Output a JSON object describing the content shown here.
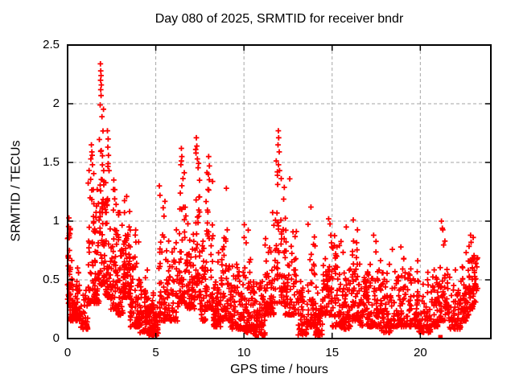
{
  "chart_data": {
    "type": "scatter",
    "title": "Day 080 of 2025, SRMTID for receiver bndr",
    "xlabel": "GPS time / hours",
    "ylabel": "SRMTID / TECUs",
    "xlim": [
      0,
      24
    ],
    "ylim": [
      0,
      2.5
    ],
    "xticks": [
      0,
      5,
      10,
      15,
      20
    ],
    "xtick_labels": [
      "0",
      "5",
      "10",
      "15",
      "20"
    ],
    "yticks": [
      0,
      0.5,
      1,
      1.5,
      2,
      2.5
    ],
    "ytick_labels": [
      "0",
      "0.5",
      "1",
      "1.5",
      "2",
      "2.5"
    ],
    "grid": true,
    "legend": "none",
    "marker": "plus",
    "marker_color": "#ff0000",
    "grid_color": "#a6a6a6",
    "axis_color": "#000000",
    "background_color": "#ffffff",
    "seed": 80,
    "density_bands_format": [
      "t_start_h",
      "t_end_h",
      "n_points",
      "y_min",
      "y_max",
      "low_bias_exponent"
    ],
    "density_bands": [
      [
        0.0,
        0.15,
        38,
        0.3,
        1.05,
        1.2
      ],
      [
        0.1,
        0.7,
        85,
        0.15,
        0.68,
        1.8
      ],
      [
        0.7,
        1.15,
        40,
        0.08,
        0.42,
        1.6
      ],
      [
        1.15,
        1.5,
        45,
        0.3,
        1.6,
        2.0
      ],
      [
        1.5,
        1.8,
        50,
        0.3,
        1.3,
        1.8
      ],
      [
        1.8,
        2.1,
        55,
        0.45,
        2.0,
        1.6
      ],
      [
        2.1,
        2.45,
        45,
        0.35,
        1.5,
        1.8
      ],
      [
        2.45,
        2.8,
        45,
        0.25,
        1.3,
        1.8
      ],
      [
        2.8,
        3.15,
        45,
        0.2,
        1.1,
        1.8
      ],
      [
        3.15,
        3.55,
        70,
        0.35,
        1.2,
        1.5
      ],
      [
        3.55,
        4.1,
        80,
        0.1,
        0.95,
        1.8
      ],
      [
        4.1,
        4.55,
        60,
        0.05,
        0.6,
        1.8
      ],
      [
        4.55,
        5.15,
        85,
        0.02,
        0.4,
        1.6
      ],
      [
        5.15,
        5.6,
        50,
        0.15,
        1.2,
        2.0
      ],
      [
        5.6,
        6.3,
        65,
        0.15,
        0.95,
        1.8
      ],
      [
        6.3,
        6.75,
        55,
        0.3,
        1.55,
        2.0
      ],
      [
        6.75,
        7.2,
        50,
        0.25,
        1.0,
        1.6
      ],
      [
        7.2,
        7.5,
        40,
        0.35,
        1.65,
        2.0
      ],
      [
        7.5,
        7.85,
        45,
        0.15,
        0.85,
        1.8
      ],
      [
        7.85,
        8.25,
        50,
        0.25,
        1.45,
        1.9
      ],
      [
        8.25,
        8.7,
        60,
        0.1,
        0.75,
        1.7
      ],
      [
        8.7,
        9.2,
        55,
        0.15,
        0.95,
        1.7
      ],
      [
        9.2,
        10.0,
        85,
        0.08,
        0.65,
        1.7
      ],
      [
        10.0,
        10.5,
        60,
        0.05,
        0.95,
        2.0
      ],
      [
        10.5,
        11.2,
        80,
        0.03,
        0.5,
        1.6
      ],
      [
        11.2,
        11.7,
        55,
        0.2,
        1.1,
        1.8
      ],
      [
        11.7,
        12.3,
        60,
        0.3,
        1.55,
        1.8
      ],
      [
        12.3,
        13.0,
        70,
        0.2,
        1.05,
        1.8
      ],
      [
        13.0,
        13.6,
        55,
        0.03,
        0.5,
        1.6
      ],
      [
        13.6,
        14.05,
        50,
        0.1,
        1.0,
        2.0
      ],
      [
        14.05,
        14.45,
        55,
        0.03,
        0.45,
        1.6
      ],
      [
        14.45,
        15.0,
        60,
        0.2,
        1.0,
        1.9
      ],
      [
        15.0,
        15.5,
        50,
        0.1,
        0.9,
        2.0
      ],
      [
        15.5,
        16.05,
        60,
        0.08,
        0.85,
        1.9
      ],
      [
        16.05,
        16.55,
        55,
        0.15,
        0.95,
        2.0
      ],
      [
        16.55,
        17.1,
        60,
        0.1,
        0.65,
        1.7
      ],
      [
        17.1,
        17.75,
        60,
        0.1,
        0.85,
        1.9
      ],
      [
        17.75,
        18.4,
        65,
        0.05,
        0.65,
        1.7
      ],
      [
        18.4,
        19.15,
        65,
        0.1,
        0.78,
        1.9
      ],
      [
        19.15,
        19.9,
        65,
        0.1,
        0.68,
        1.8
      ],
      [
        19.9,
        20.6,
        60,
        0.05,
        0.58,
        1.7
      ],
      [
        20.6,
        21.0,
        45,
        0.1,
        0.6,
        1.7
      ],
      [
        21.0,
        21.6,
        55,
        0.15,
        0.95,
        2.0
      ],
      [
        21.6,
        22.3,
        60,
        0.08,
        0.6,
        1.7
      ],
      [
        22.3,
        22.75,
        50,
        0.15,
        0.75,
        1.8
      ],
      [
        22.75,
        23.05,
        40,
        0.25,
        0.88,
        1.8
      ],
      [
        23.05,
        23.25,
        20,
        0.3,
        0.7,
        1.5
      ]
    ],
    "peak_points": [
      [
        1.86,
        2.34
      ],
      [
        1.88,
        2.28
      ],
      [
        1.9,
        2.24
      ],
      [
        1.87,
        2.2
      ],
      [
        1.91,
        2.16
      ],
      [
        1.88,
        2.12
      ],
      [
        1.9,
        2.07
      ],
      [
        1.85,
        1.99
      ],
      [
        1.95,
        1.89
      ],
      [
        2.26,
        1.77
      ],
      [
        2.3,
        1.7
      ],
      [
        2.28,
        1.63
      ],
      [
        2.32,
        1.56
      ],
      [
        2.3,
        1.49
      ],
      [
        2.35,
        1.43
      ],
      [
        1.35,
        1.65
      ],
      [
        1.38,
        1.59
      ],
      [
        1.32,
        1.53
      ],
      [
        1.41,
        1.48
      ],
      [
        2.62,
        1.35
      ],
      [
        2.6,
        1.27
      ],
      [
        3.35,
        1.21
      ],
      [
        5.2,
        1.3
      ],
      [
        5.24,
        1.22
      ],
      [
        6.45,
        1.62
      ],
      [
        6.48,
        1.55
      ],
      [
        6.42,
        1.48
      ],
      [
        7.3,
        1.71
      ],
      [
        7.33,
        1.64
      ],
      [
        7.28,
        1.58
      ],
      [
        7.36,
        1.53
      ],
      [
        8.0,
        1.55
      ],
      [
        8.04,
        1.47
      ],
      [
        7.98,
        1.4
      ],
      [
        9.0,
        1.28
      ],
      [
        10.02,
        0.97
      ],
      [
        11.95,
        1.77
      ],
      [
        11.97,
        1.71
      ],
      [
        11.93,
        1.65
      ],
      [
        12.0,
        1.59
      ],
      [
        11.96,
        1.48
      ],
      [
        12.02,
        1.43
      ],
      [
        12.6,
        1.36
      ],
      [
        13.8,
        1.12
      ],
      [
        14.8,
        1.02
      ],
      [
        15.8,
        0.95
      ],
      [
        16.2,
        1.01
      ],
      [
        17.35,
        0.88
      ],
      [
        18.9,
        0.78
      ],
      [
        21.2,
        1.0
      ],
      [
        21.25,
        0.94
      ],
      [
        22.85,
        0.88
      ],
      [
        22.88,
        0.82
      ]
    ],
    "zero_line_squares": [
      [
        10.73,
        0.0
      ],
      [
        21.14,
        0.0
      ]
    ]
  }
}
